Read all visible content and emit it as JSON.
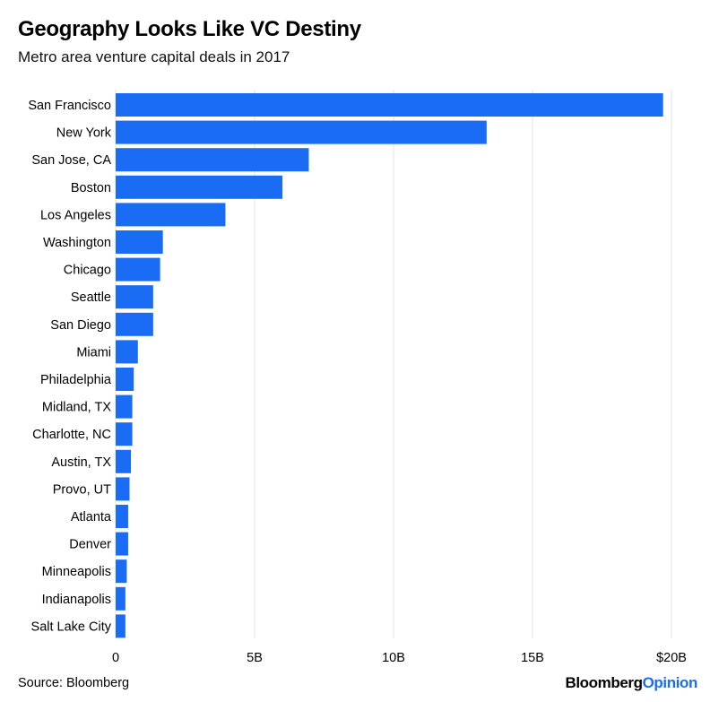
{
  "header": {
    "title": "Geography Looks Like VC Destiny",
    "subtitle": "Metro area venture capital deals in 2017"
  },
  "footer": {
    "source": "Source: Bloomberg",
    "brand_part1": "Bloomberg",
    "brand_part2": "Opinion"
  },
  "colors": {
    "bar": "#1a6cf5",
    "grid": "#e3e3e3",
    "brand_accent": "#1a6cf5"
  },
  "chart_data": {
    "type": "bar",
    "orientation": "horizontal",
    "title": "Geography Looks Like VC Destiny",
    "subtitle": "Metro area venture capital deals in 2017",
    "categories": [
      "San Francisco",
      "New York",
      "San Jose, CA",
      "Boston",
      "Los Angeles",
      "Washington",
      "Chicago",
      "Seattle",
      "San Diego",
      "Miami",
      "Philadelphia",
      "Midland, TX",
      "Charlotte, NC",
      "Austin, TX",
      "Provo, UT",
      "Atlanta",
      "Denver",
      "Minneapolis",
      "Indianapolis",
      "Salt Lake City"
    ],
    "values": [
      19.7,
      13.35,
      6.95,
      6.0,
      3.95,
      1.7,
      1.6,
      1.35,
      1.35,
      0.8,
      0.65,
      0.6,
      0.6,
      0.55,
      0.5,
      0.45,
      0.45,
      0.4,
      0.35,
      0.35
    ],
    "unit": "billion USD",
    "xlim": [
      0,
      20
    ],
    "xticks": [
      0,
      5,
      10,
      15,
      20
    ],
    "xtick_labels": [
      "0",
      "5B",
      "10B",
      "15B",
      "$20B"
    ],
    "grid": true,
    "legend": "none"
  }
}
